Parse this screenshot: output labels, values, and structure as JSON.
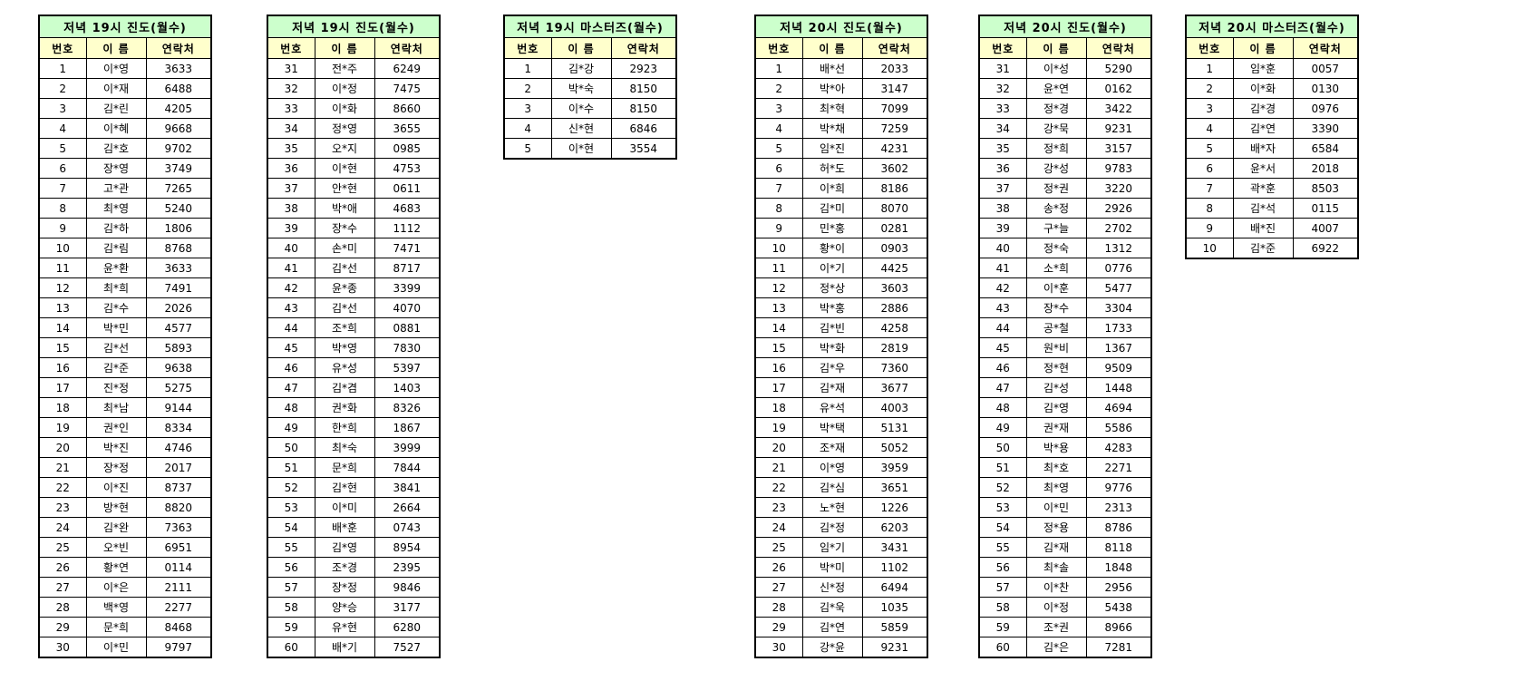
{
  "colors": {
    "title_bg": "#ccffcc",
    "header_bg": "#ffffcc",
    "border": "#000000",
    "text": "#000000",
    "page_bg": "#ffffff"
  },
  "tables": [
    {
      "title": "저녁 19시 진도(월수)",
      "columns": [
        "번호",
        "이 름",
        "연락처"
      ],
      "rows": [
        [
          "1",
          "이*영",
          "3633"
        ],
        [
          "2",
          "이*재",
          "6488"
        ],
        [
          "3",
          "김*린",
          "4205"
        ],
        [
          "4",
          "이*혜",
          "9668"
        ],
        [
          "5",
          "김*호",
          "9702"
        ],
        [
          "6",
          "장*영",
          "3749"
        ],
        [
          "7",
          "고*관",
          "7265"
        ],
        [
          "8",
          "최*영",
          "5240"
        ],
        [
          "9",
          "김*하",
          "1806"
        ],
        [
          "10",
          "김*림",
          "8768"
        ],
        [
          "11",
          "윤*환",
          "3633"
        ],
        [
          "12",
          "최*희",
          "7491"
        ],
        [
          "13",
          "김*수",
          "2026"
        ],
        [
          "14",
          "박*민",
          "4577"
        ],
        [
          "15",
          "김*선",
          "5893"
        ],
        [
          "16",
          "김*준",
          "9638"
        ],
        [
          "17",
          "진*정",
          "5275"
        ],
        [
          "18",
          "최*남",
          "9144"
        ],
        [
          "19",
          "권*인",
          "8334"
        ],
        [
          "20",
          "박*진",
          "4746"
        ],
        [
          "21",
          "장*정",
          "2017"
        ],
        [
          "22",
          "이*진",
          "8737"
        ],
        [
          "23",
          "방*현",
          "8820"
        ],
        [
          "24",
          "김*완",
          "7363"
        ],
        [
          "25",
          "오*빈",
          "6951"
        ],
        [
          "26",
          "황*연",
          "0114"
        ],
        [
          "27",
          "이*은",
          "2111"
        ],
        [
          "28",
          "백*영",
          "2277"
        ],
        [
          "29",
          "문*희",
          "8468"
        ],
        [
          "30",
          "이*민",
          "9797"
        ]
      ]
    },
    {
      "title": "저녁 19시 진도(월수)",
      "columns": [
        "번호",
        "이 름",
        "연락처"
      ],
      "rows": [
        [
          "31",
          "전*주",
          "6249"
        ],
        [
          "32",
          "이*정",
          "7475"
        ],
        [
          "33",
          "이*화",
          "8660"
        ],
        [
          "34",
          "정*영",
          "3655"
        ],
        [
          "35",
          "오*지",
          "0985"
        ],
        [
          "36",
          "이*현",
          "4753"
        ],
        [
          "37",
          "안*현",
          "0611"
        ],
        [
          "38",
          "박*애",
          "4683"
        ],
        [
          "39",
          "장*수",
          "1112"
        ],
        [
          "40",
          "손*미",
          "7471"
        ],
        [
          "41",
          "김*선",
          "8717"
        ],
        [
          "42",
          "윤*종",
          "3399"
        ],
        [
          "43",
          "김*선",
          "4070"
        ],
        [
          "44",
          "조*희",
          "0881"
        ],
        [
          "45",
          "박*영",
          "7830"
        ],
        [
          "46",
          "유*성",
          "5397"
        ],
        [
          "47",
          "김*겸",
          "1403"
        ],
        [
          "48",
          "권*화",
          "8326"
        ],
        [
          "49",
          "한*희",
          "1867"
        ],
        [
          "50",
          "최*숙",
          "3999"
        ],
        [
          "51",
          "문*희",
          "7844"
        ],
        [
          "52",
          "김*현",
          "3841"
        ],
        [
          "53",
          "이*미",
          "2664"
        ],
        [
          "54",
          "배*훈",
          "0743"
        ],
        [
          "55",
          "김*영",
          "8954"
        ],
        [
          "56",
          "조*경",
          "2395"
        ],
        [
          "57",
          "장*정",
          "9846"
        ],
        [
          "58",
          "양*승",
          "3177"
        ],
        [
          "59",
          "유*현",
          "6280"
        ],
        [
          "60",
          "배*기",
          "7527"
        ]
      ]
    },
    {
      "title": "저녁 19시 마스터즈(월수)",
      "columns": [
        "번호",
        "이 름",
        "연락처"
      ],
      "rows": [
        [
          "1",
          "김*강",
          "2923"
        ],
        [
          "2",
          "박*숙",
          "8150"
        ],
        [
          "3",
          "이*수",
          "8150"
        ],
        [
          "4",
          "신*현",
          "6846"
        ],
        [
          "5",
          "이*현",
          "3554"
        ]
      ]
    },
    {
      "title": "저녁 20시 진도(월수)",
      "columns": [
        "번호",
        "이 름",
        "연락처"
      ],
      "rows": [
        [
          "1",
          "배*선",
          "2033"
        ],
        [
          "2",
          "박*아",
          "3147"
        ],
        [
          "3",
          "최*혁",
          "7099"
        ],
        [
          "4",
          "박*채",
          "7259"
        ],
        [
          "5",
          "임*진",
          "4231"
        ],
        [
          "6",
          "허*도",
          "3602"
        ],
        [
          "7",
          "이*희",
          "8186"
        ],
        [
          "8",
          "김*미",
          "8070"
        ],
        [
          "9",
          "민*홍",
          "0281"
        ],
        [
          "10",
          "황*이",
          "0903"
        ],
        [
          "11",
          "이*기",
          "4425"
        ],
        [
          "12",
          "정*상",
          "3603"
        ],
        [
          "13",
          "박*홍",
          "2886"
        ],
        [
          "14",
          "김*빈",
          "4258"
        ],
        [
          "15",
          "박*화",
          "2819"
        ],
        [
          "16",
          "김*우",
          "7360"
        ],
        [
          "17",
          "김*재",
          "3677"
        ],
        [
          "18",
          "유*석",
          "4003"
        ],
        [
          "19",
          "박*택",
          "5131"
        ],
        [
          "20",
          "조*재",
          "5052"
        ],
        [
          "21",
          "이*영",
          "3959"
        ],
        [
          "22",
          "김*심",
          "3651"
        ],
        [
          "23",
          "노*현",
          "1226"
        ],
        [
          "24",
          "김*정",
          "6203"
        ],
        [
          "25",
          "임*기",
          "3431"
        ],
        [
          "26",
          "박*미",
          "1102"
        ],
        [
          "27",
          "신*정",
          "6494"
        ],
        [
          "28",
          "김*욱",
          "1035"
        ],
        [
          "29",
          "김*연",
          "5859"
        ],
        [
          "30",
          "강*윤",
          "9231"
        ]
      ]
    },
    {
      "title": "저녁 20시 진도(월수)",
      "columns": [
        "번호",
        "이 름",
        "연락처"
      ],
      "rows": [
        [
          "31",
          "이*성",
          "5290"
        ],
        [
          "32",
          "윤*연",
          "0162"
        ],
        [
          "33",
          "정*경",
          "3422"
        ],
        [
          "34",
          "강*묵",
          "9231"
        ],
        [
          "35",
          "정*희",
          "3157"
        ],
        [
          "36",
          "강*성",
          "9783"
        ],
        [
          "37",
          "정*권",
          "3220"
        ],
        [
          "38",
          "송*정",
          "2926"
        ],
        [
          "39",
          "구*늘",
          "2702"
        ],
        [
          "40",
          "정*숙",
          "1312"
        ],
        [
          "41",
          "소*희",
          "0776"
        ],
        [
          "42",
          "이*훈",
          "5477"
        ],
        [
          "43",
          "장*수",
          "3304"
        ],
        [
          "44",
          "공*철",
          "1733"
        ],
        [
          "45",
          "원*비",
          "1367"
        ],
        [
          "46",
          "정*현",
          "9509"
        ],
        [
          "47",
          "김*성",
          "1448"
        ],
        [
          "48",
          "김*영",
          "4694"
        ],
        [
          "49",
          "권*재",
          "5586"
        ],
        [
          "50",
          "박*용",
          "4283"
        ],
        [
          "51",
          "최*호",
          "2271"
        ],
        [
          "52",
          "최*영",
          "9776"
        ],
        [
          "53",
          "이*민",
          "2313"
        ],
        [
          "54",
          "정*용",
          "8786"
        ],
        [
          "55",
          "김*재",
          "8118"
        ],
        [
          "56",
          "최*솔",
          "1848"
        ],
        [
          "57",
          "이*찬",
          "2956"
        ],
        [
          "58",
          "이*정",
          "5438"
        ],
        [
          "59",
          "조*권",
          "8966"
        ],
        [
          "60",
          "김*은",
          "7281"
        ]
      ]
    },
    {
      "title": "저녁 20시 마스터즈(월수)",
      "columns": [
        "번호",
        "이 름",
        "연락처"
      ],
      "rows": [
        [
          "1",
          "임*훈",
          "0057"
        ],
        [
          "2",
          "이*화",
          "0130"
        ],
        [
          "3",
          "김*경",
          "0976"
        ],
        [
          "4",
          "김*연",
          "3390"
        ],
        [
          "5",
          "배*자",
          "6584"
        ],
        [
          "6",
          "윤*서",
          "2018"
        ],
        [
          "7",
          "곽*훈",
          "8503"
        ],
        [
          "8",
          "김*석",
          "0115"
        ],
        [
          "9",
          "배*진",
          "4007"
        ],
        [
          "10",
          "김*준",
          "6922"
        ]
      ]
    }
  ]
}
